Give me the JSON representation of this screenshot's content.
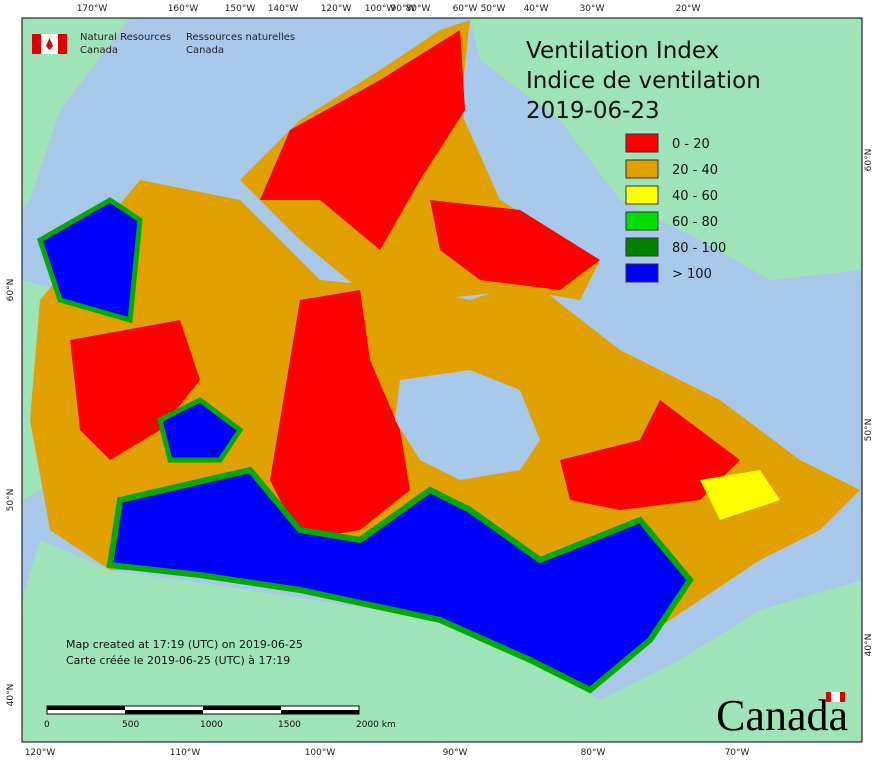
{
  "header": {
    "agency_en": [
      "Natural Resources",
      "Canada"
    ],
    "agency_fr": [
      "Ressources naturelles",
      "Canada"
    ]
  },
  "title": {
    "lines": [
      "Ventilation Index",
      "Indice de ventilation",
      "2019-06-23"
    ]
  },
  "legend": [
    {
      "label": "0 - 20",
      "color": "#ff0000"
    },
    {
      "label": "20 - 40",
      "color": "#e0a000"
    },
    {
      "label": "40 - 60",
      "color": "#ffff00"
    },
    {
      "label": "60 - 80",
      "color": "#00dd00"
    },
    {
      "label": "80 - 100",
      "color": "#008000"
    },
    {
      "label": "> 100",
      "color": "#0000ff"
    }
  ],
  "graticule": {
    "top": [
      "170°W",
      "160°W",
      "150°W",
      "140°W",
      "120°W",
      "100°W",
      "90°W",
      "80°W",
      "60°W",
      "50°W",
      "40°W",
      "30°W",
      "20°W"
    ],
    "bottom": [
      "120°W",
      "110°W",
      "100°W",
      "90°W",
      "80°W",
      "70°W"
    ],
    "left": [
      "60°N",
      "50°N",
      "40°N"
    ],
    "right": [
      "60°N",
      "50°N",
      "40°N"
    ]
  },
  "credits": [
    "Map created at 17:19 (UTC) on 2019-06-25",
    "Carte créée le 2019-06-25 (UTC) à 17:19"
  ],
  "scale_bar": {
    "labels": [
      "0",
      "500",
      "1000",
      "1500",
      "2000 km"
    ]
  },
  "wordmark": "Canada"
}
